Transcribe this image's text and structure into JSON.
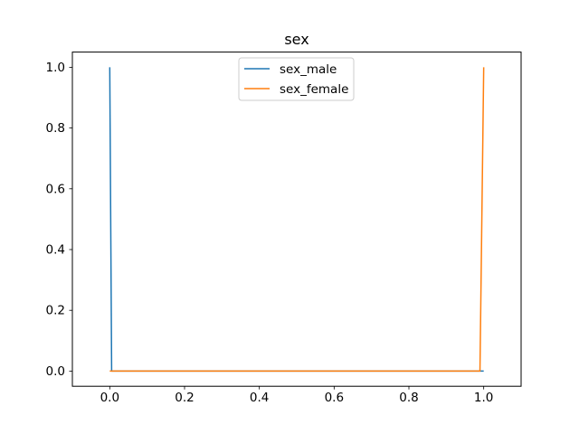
{
  "chart_data": {
    "type": "line",
    "title": "sex",
    "xlabel": "",
    "ylabel": "",
    "xlim": [
      -0.1,
      1.1
    ],
    "ylim": [
      -0.05,
      1.05
    ],
    "xticks": [
      0.0,
      0.2,
      0.4,
      0.6,
      0.8,
      1.0
    ],
    "xtick_labels": [
      "0.0",
      "0.2",
      "0.4",
      "0.6",
      "0.8",
      "1.0"
    ],
    "yticks": [
      0.0,
      0.2,
      0.4,
      0.6,
      0.8,
      1.0
    ],
    "ytick_labels": [
      "0.0",
      "0.2",
      "0.4",
      "0.6",
      "0.8",
      "1.0"
    ],
    "grid": false,
    "legend": {
      "position": "top-center"
    },
    "series": [
      {
        "name": "sex_male",
        "color": "#1f77b4",
        "x": [
          0.0,
          0.005,
          0.99,
          1.0
        ],
        "y": [
          1.0,
          0.0,
          0.0,
          0.0
        ]
      },
      {
        "name": "sex_female",
        "color": "#ff7f0e",
        "x": [
          0.0,
          0.005,
          0.99,
          1.0
        ],
        "y": [
          0.0,
          0.0,
          0.0,
          1.0
        ]
      }
    ]
  }
}
